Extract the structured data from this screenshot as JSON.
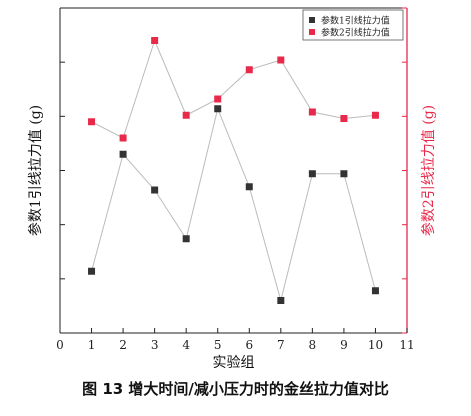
{
  "caption": "图 13 增大时间/减小压力时的金丝拉力值对比",
  "chart_data": {
    "type": "line",
    "title": "",
    "xlabel": "实验组",
    "ylabel_left": "参数1引线拉力值 (g)",
    "ylabel_right": "参数2引线拉力值 (g)",
    "xlim": [
      0,
      11
    ],
    "x_ticks": [
      0,
      1,
      2,
      3,
      4,
      5,
      6,
      7,
      8,
      9,
      10,
      11
    ],
    "ylim": [
      0,
      10
    ],
    "y_tick_count": 6,
    "legend_position": "top-right",
    "grid": false,
    "x": [
      1,
      2,
      3,
      4,
      5,
      6,
      7,
      8,
      9,
      10
    ],
    "series": [
      {
        "name": "参数1引线拉力值",
        "axis": "left",
        "color": "#333333",
        "marker": "square",
        "values": [
          1.9,
          5.5,
          4.4,
          2.9,
          6.9,
          4.5,
          1.0,
          4.9,
          4.9,
          1.3
        ]
      },
      {
        "name": "参数2引线拉力值",
        "axis": "right",
        "color": "#e8294a",
        "marker": "square",
        "values": [
          6.5,
          6.0,
          9.0,
          6.7,
          7.2,
          8.1,
          8.4,
          6.8,
          6.6,
          6.7
        ]
      }
    ],
    "colors": {
      "axis_left": "#222222",
      "axis_right": "#e8294a",
      "line": "#bbbbbb"
    }
  }
}
